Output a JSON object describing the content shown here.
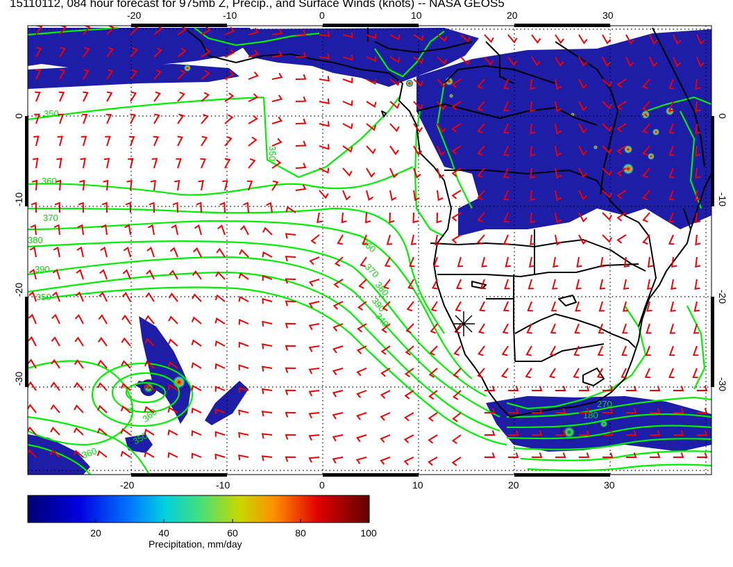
{
  "title": "15110112, 084 hour forecast for 975mb Z, Precip., and Surface Winds (knots) -- NASA GEOS5",
  "map": {
    "lon_range": [
      -30,
      41
    ],
    "lat_range": [
      -40,
      10
    ],
    "top_lon_ticks": [
      "-20",
      "-10",
      "0",
      "10",
      "20",
      "30"
    ],
    "bottom_lon_ticks": [
      "-20",
      "-10",
      "0",
      "10",
      "20",
      "30"
    ],
    "left_lat_ticks": [
      "0",
      "-10",
      "-20",
      "-30"
    ],
    "right_lat_ticks": [
      "0",
      "-10",
      "-20",
      "-30"
    ],
    "grid": "dotted",
    "contour_color": "#00ee00",
    "wind_barb_color": "#ee0000",
    "coastline_color": "#000000",
    "precip_base_color": "#1a1aa0",
    "contour_labels": [
      "350",
      "360",
      "370",
      "380",
      "390",
      "350",
      "360",
      "370",
      "380",
      "390",
      "340",
      "350",
      "360",
      "270",
      "180",
      "350",
      "360"
    ],
    "marker": "star-marker"
  },
  "colorbar": {
    "label": "Precipitation, mm/day",
    "ticks": [
      "20",
      "40",
      "60",
      "80",
      "100"
    ],
    "colors": [
      "#000080",
      "#0000ff",
      "#00aaff",
      "#00dddd",
      "#66ee66",
      "#dddd00",
      "#ff8800",
      "#dd0000",
      "#6a0000"
    ]
  }
}
